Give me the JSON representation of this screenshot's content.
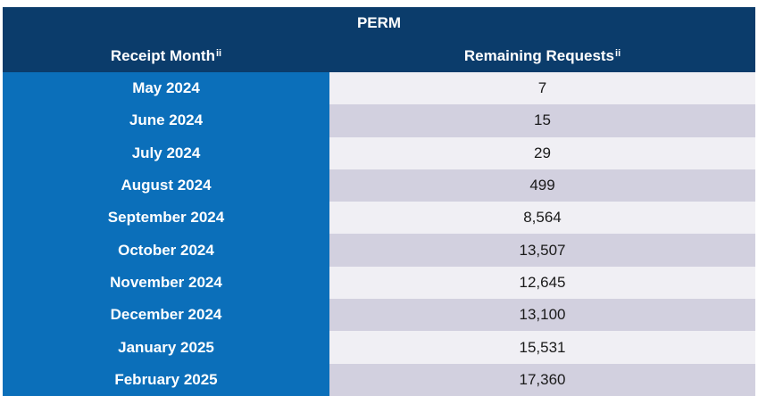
{
  "table": {
    "title": "PERM",
    "headers": {
      "month": "Receipt Month",
      "month_sup": "ii",
      "remaining": "Remaining Requests",
      "remaining_sup": "ii"
    },
    "rows": [
      {
        "month": "May 2024",
        "remaining": "7"
      },
      {
        "month": "June 2024",
        "remaining": "15"
      },
      {
        "month": "July 2024",
        "remaining": "29"
      },
      {
        "month": "August 2024",
        "remaining": "499"
      },
      {
        "month": "September 2024",
        "remaining": "8,564"
      },
      {
        "month": "October 2024",
        "remaining": "13,507"
      },
      {
        "month": "November 2024",
        "remaining": "12,645"
      },
      {
        "month": "December 2024",
        "remaining": "13,100"
      },
      {
        "month": "January 2025",
        "remaining": "15,531"
      },
      {
        "month": "February 2025",
        "remaining": "17,360"
      }
    ]
  },
  "colors": {
    "header_bg": "#0b3c6b",
    "month_bg": "#0b6fba",
    "row_light": "#f0eff4",
    "row_dark": "#d2d0df"
  }
}
